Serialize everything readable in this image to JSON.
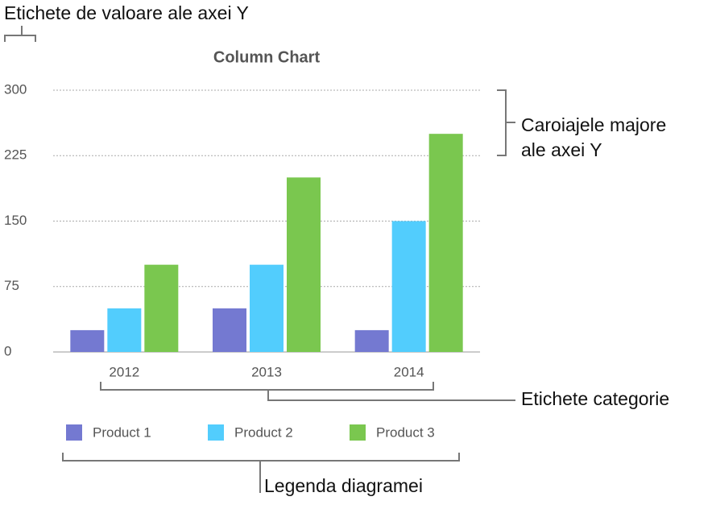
{
  "chart_data": {
    "type": "bar",
    "title": "Column Chart",
    "categories": [
      "2012",
      "2013",
      "2014"
    ],
    "series": [
      {
        "name": "Product 1",
        "color": "#7479d1",
        "values": [
          25,
          50,
          25
        ]
      },
      {
        "name": "Product 2",
        "color": "#52cdfd",
        "values": [
          50,
          100,
          150
        ]
      },
      {
        "name": "Product 3",
        "color": "#7ac74f",
        "values": [
          100,
          200,
          250
        ]
      }
    ],
    "ylim": [
      0,
      300
    ],
    "yticks": [
      0,
      75,
      150,
      225,
      300
    ],
    "grid": true,
    "annotations": [
      "Etichete de valoare ale axei Y",
      "Caroiajele majore",
      "ale axei Y",
      "Etichete categorie",
      "Legenda diagramei"
    ]
  }
}
